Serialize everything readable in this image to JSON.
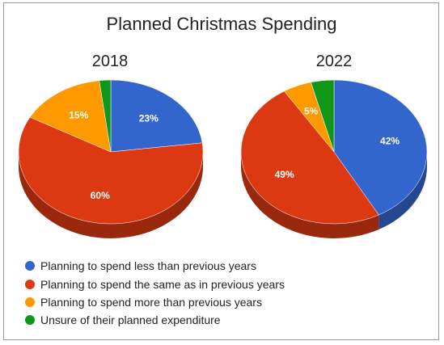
{
  "chart_data": {
    "type": "pie",
    "title": "Planned Christmas Spending",
    "legend_position": "bottom-left",
    "categories": [
      "Planning to spend less than previous years",
      "Planning to spend the same as in previous years",
      "Planning to spend more than previous years",
      "Unsure of their planned expenditure"
    ],
    "colors": [
      "#3366cc",
      "#dc3912",
      "#ff9900",
      "#109618"
    ],
    "series": [
      {
        "name": "2018",
        "values": [
          23,
          60,
          15,
          2
        ],
        "labels": [
          "23%",
          "60%",
          "15%",
          ""
        ]
      },
      {
        "name": "2022",
        "values": [
          42,
          49,
          5,
          4
        ],
        "labels": [
          "42%",
          "49%",
          "5%",
          ""
        ]
      }
    ]
  }
}
